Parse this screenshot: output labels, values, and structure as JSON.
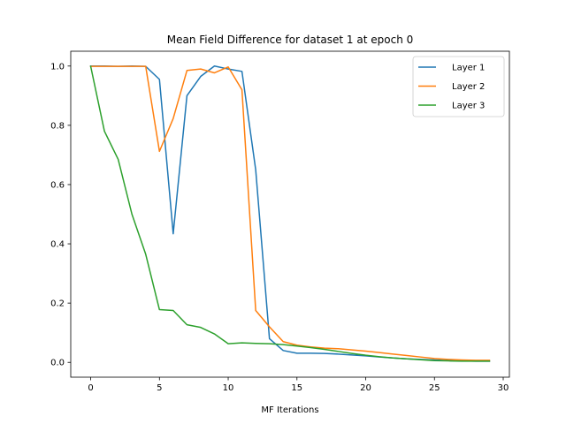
{
  "chart_data": {
    "type": "line",
    "title": "Mean Field Difference for dataset 1 at epoch 0",
    "xlabel": "MF Iterations",
    "ylabel": "",
    "xlim": [
      -1.45,
      30.45
    ],
    "ylim": [
      -0.05,
      1.05
    ],
    "xticks": [
      0,
      5,
      10,
      15,
      20,
      25,
      30
    ],
    "yticks": [
      0.0,
      0.2,
      0.4,
      0.6,
      0.8,
      1.0
    ],
    "xtick_labels": [
      "0",
      "5",
      "10",
      "15",
      "20",
      "25",
      "30"
    ],
    "ytick_labels": [
      "0.0",
      "0.2",
      "0.4",
      "0.6",
      "0.8",
      "1.0"
    ],
    "grid": false,
    "legend_position": "top-right",
    "x": [
      0,
      1,
      2,
      3,
      4,
      5,
      6,
      7,
      8,
      9,
      10,
      11,
      12,
      13,
      14,
      15,
      16,
      17,
      18,
      19,
      20,
      21,
      22,
      23,
      24,
      25,
      26,
      27,
      28,
      29
    ],
    "series": [
      {
        "name": "Layer 1",
        "color": "#1f77b4",
        "values": [
          1.0,
          1.0,
          0.999,
          1.0,
          0.999,
          0.955,
          0.434,
          0.9,
          0.965,
          1.0,
          0.99,
          0.982,
          0.65,
          0.08,
          0.04,
          0.031,
          0.031,
          0.03,
          0.028,
          0.025,
          0.022,
          0.018,
          0.015,
          0.012,
          0.01,
          0.008,
          0.006,
          0.005,
          0.004,
          0.004
        ]
      },
      {
        "name": "Layer 2",
        "color": "#ff7f0e",
        "values": [
          0.999,
          0.999,
          0.999,
          0.999,
          0.999,
          0.712,
          0.823,
          0.985,
          0.99,
          0.977,
          0.997,
          0.92,
          0.175,
          0.12,
          0.07,
          0.058,
          0.052,
          0.048,
          0.046,
          0.042,
          0.038,
          0.033,
          0.028,
          0.023,
          0.018,
          0.013,
          0.01,
          0.008,
          0.007,
          0.007
        ]
      },
      {
        "name": "Layer 3",
        "color": "#2ca02c",
        "values": [
          0.999,
          0.78,
          0.685,
          0.5,
          0.365,
          0.178,
          0.175,
          0.127,
          0.118,
          0.096,
          0.063,
          0.066,
          0.064,
          0.063,
          0.06,
          0.055,
          0.05,
          0.044,
          0.037,
          0.03,
          0.024,
          0.019,
          0.015,
          0.012,
          0.009,
          0.006,
          0.005,
          0.004,
          0.004,
          0.004
        ]
      }
    ]
  }
}
